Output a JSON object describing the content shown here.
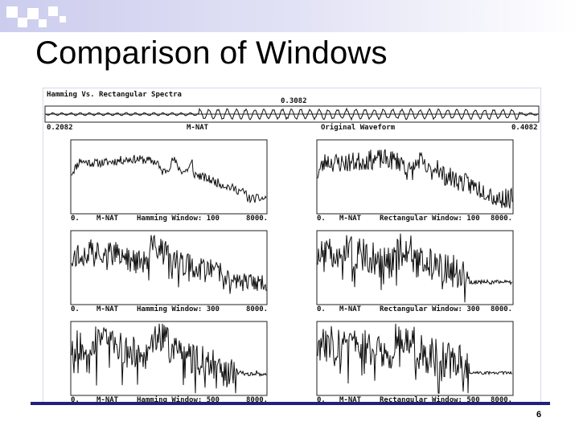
{
  "slide": {
    "title": "Comparison of Windows",
    "page_number": "6",
    "band_color": "#ccccee",
    "accent_color": "#22227a"
  },
  "figure": {
    "header_title": "Hamming Vs. Rectangular Spectra",
    "cursor_value": "0.3082",
    "waveform": {
      "start_label": "0.2082",
      "source_label": "M-NAT",
      "caption": "Original Waveform",
      "end_label": "0.4082"
    },
    "panels": [
      {
        "id": "h100",
        "start": "0.",
        "source": "M-NAT",
        "label": "Hamming Window: 100",
        "end": "8000."
      },
      {
        "id": "r100",
        "start": "0.",
        "source": "M-NAT",
        "label": "Rectangular Window: 100",
        "end": "8000."
      },
      {
        "id": "h300",
        "start": "0.",
        "source": "M-NAT",
        "label": "Hamming Window: 300",
        "end": "8000."
      },
      {
        "id": "r300",
        "start": "0.",
        "source": "M-NAT",
        "label": "Rectangular Window: 300",
        "end": "8000."
      },
      {
        "id": "h500",
        "start": "0.",
        "source": "M-NAT",
        "label": "Hamming Window: 500",
        "end": "8000."
      },
      {
        "id": "r500",
        "start": "0.",
        "source": "M-NAT",
        "label": "Rectangular Window: 500",
        "end": "8000."
      }
    ]
  }
}
